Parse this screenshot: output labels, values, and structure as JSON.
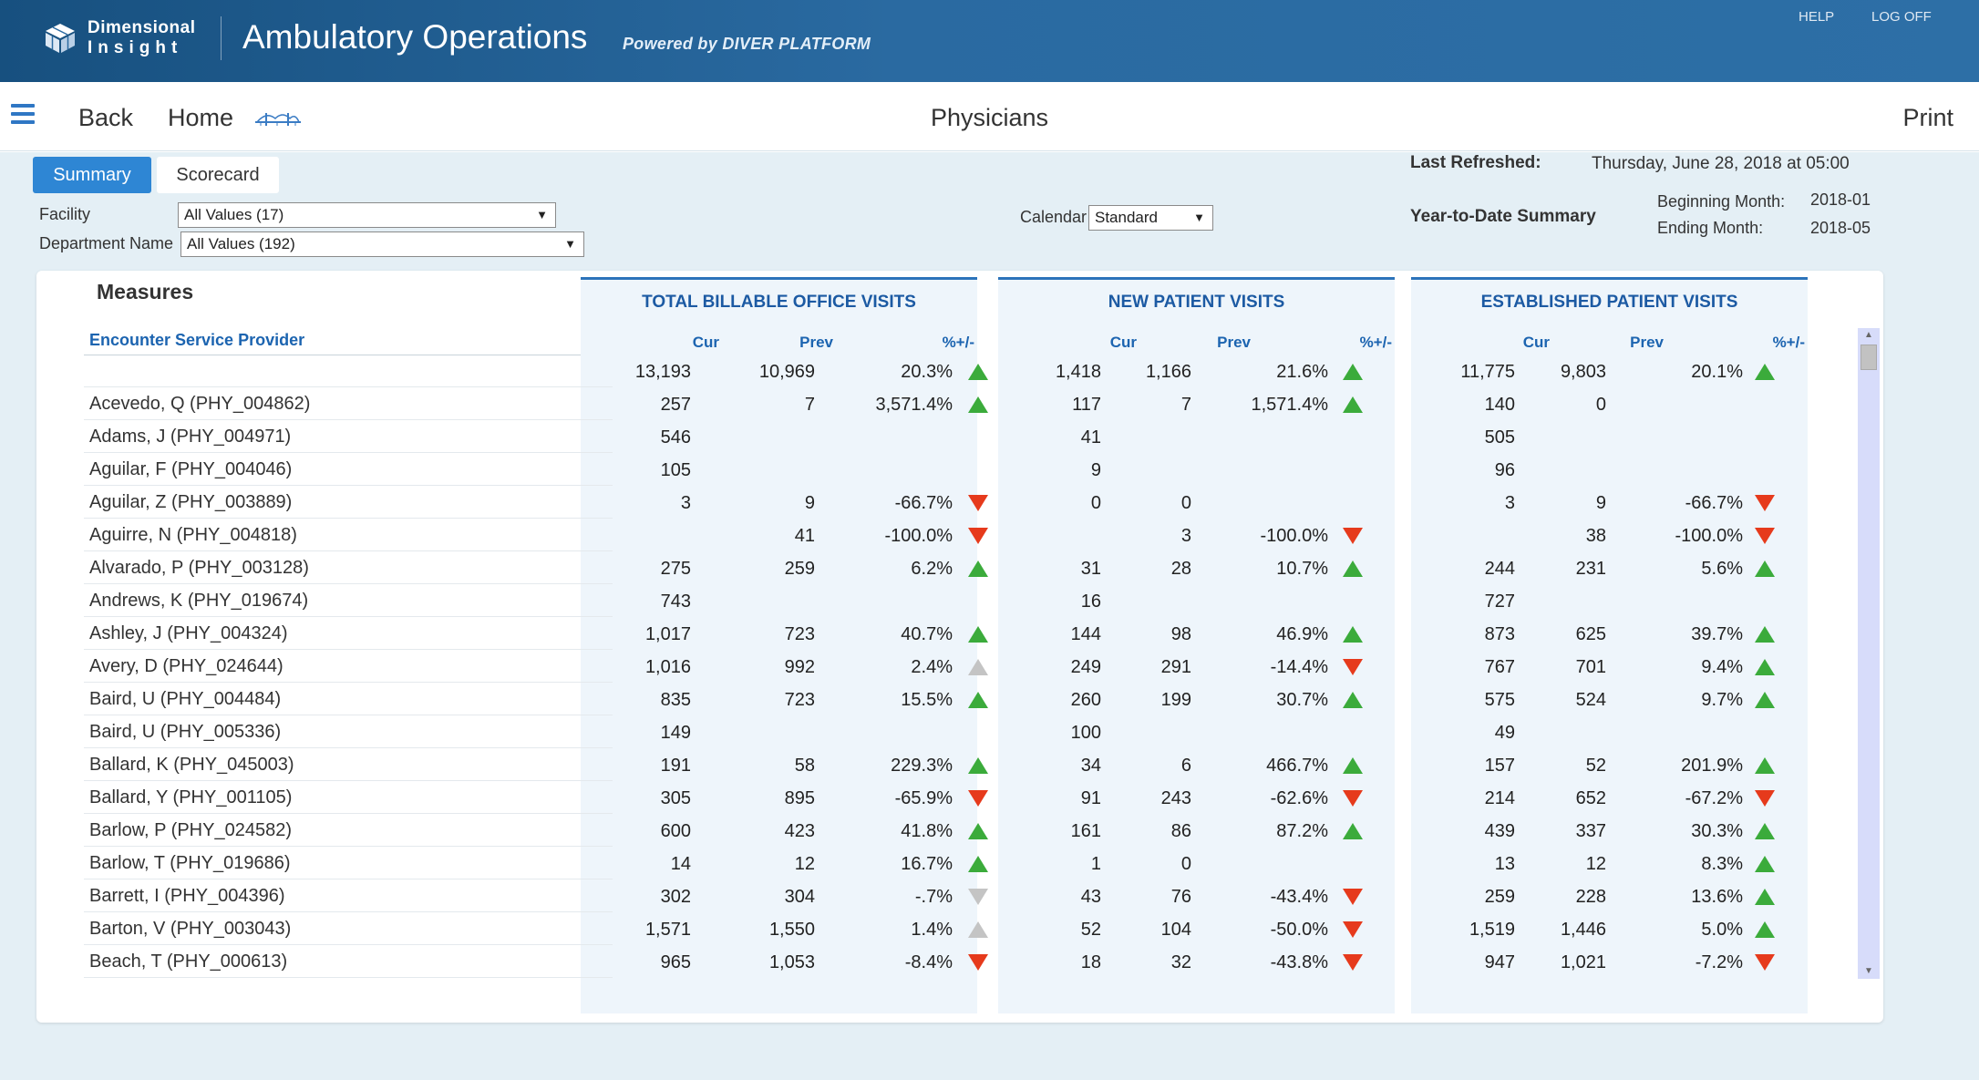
{
  "header": {
    "logo_line1": "Dimensional",
    "logo_line2": "Insight",
    "app_title": "Ambulatory Operations",
    "powered_by": "Powered by DIVER PLATFORM",
    "help": "HELP",
    "logoff": "LOG OFF",
    "colors": {
      "bar_start": "#17507f",
      "bar_end": "#2d6fa6"
    }
  },
  "nav": {
    "back": "Back",
    "home": "Home",
    "page_title": "Physicians",
    "print": "Print",
    "icons": [
      "hamburger-menu-icon",
      "bridge-icon"
    ]
  },
  "tabs": {
    "summary": "Summary",
    "scorecard": "Scorecard",
    "active": "Summary"
  },
  "filters": {
    "facility_label": "Facility",
    "facility_value": "All Values (17)",
    "department_label": "Department Name",
    "department_value": "All Values (192)",
    "calendar_label": "Calendar",
    "calendar_value": "Standard"
  },
  "info": {
    "last_refreshed_label": "Last Refreshed:",
    "last_refreshed_value": "Thursday, June 28, 2018 at 05:00",
    "ytd_label": "Year-to-Date Summary",
    "beginning_label": "Beginning Month:",
    "beginning_value": "2018-01",
    "ending_label": "Ending Month:",
    "ending_value": "2018-05"
  },
  "table": {
    "measures_title": "Measures",
    "provider_header": "Encounter Service Provider",
    "groups": [
      "TOTAL BILLABLE OFFICE VISITS",
      "NEW PATIENT VISITS",
      "ESTABLISHED PATIENT VISITS"
    ],
    "col_headers": [
      "Cur",
      "Prev",
      "%+/-"
    ],
    "trend_colors": {
      "up": "#3bab3b",
      "down": "#e63a1c",
      "flat": "#c4c4c4"
    },
    "rows": [
      {
        "name": "",
        "g": [
          [
            "13,193",
            "10,969",
            "20.3%",
            "up"
          ],
          [
            "1,418",
            "1,166",
            "21.6%",
            "up"
          ],
          [
            "11,775",
            "9,803",
            "20.1%",
            "up"
          ]
        ]
      },
      {
        "name": "Acevedo, Q (PHY_004862)",
        "g": [
          [
            "257",
            "7",
            "3,571.4%",
            "up"
          ],
          [
            "117",
            "7",
            "1,571.4%",
            "up"
          ],
          [
            "140",
            "0",
            "",
            ""
          ]
        ]
      },
      {
        "name": "Adams, J (PHY_004971)",
        "g": [
          [
            "546",
            "",
            "",
            ""
          ],
          [
            "41",
            "",
            "",
            ""
          ],
          [
            "505",
            "",
            "",
            ""
          ]
        ]
      },
      {
        "name": "Aguilar, F (PHY_004046)",
        "g": [
          [
            "105",
            "",
            "",
            ""
          ],
          [
            "9",
            "",
            "",
            ""
          ],
          [
            "96",
            "",
            "",
            ""
          ]
        ]
      },
      {
        "name": "Aguilar, Z (PHY_003889)",
        "g": [
          [
            "3",
            "9",
            "-66.7%",
            "down"
          ],
          [
            "0",
            "0",
            "",
            ""
          ],
          [
            "3",
            "9",
            "-66.7%",
            "down"
          ]
        ]
      },
      {
        "name": "Aguirre, N (PHY_004818)",
        "g": [
          [
            "",
            "41",
            "-100.0%",
            "down"
          ],
          [
            "",
            "3",
            "-100.0%",
            "down"
          ],
          [
            "",
            "38",
            "-100.0%",
            "down"
          ]
        ]
      },
      {
        "name": "Alvarado, P (PHY_003128)",
        "g": [
          [
            "275",
            "259",
            "6.2%",
            "up"
          ],
          [
            "31",
            "28",
            "10.7%",
            "up"
          ],
          [
            "244",
            "231",
            "5.6%",
            "up"
          ]
        ]
      },
      {
        "name": "Andrews, K (PHY_019674)",
        "g": [
          [
            "743",
            "",
            "",
            ""
          ],
          [
            "16",
            "",
            "",
            ""
          ],
          [
            "727",
            "",
            "",
            ""
          ]
        ]
      },
      {
        "name": "Ashley, J (PHY_004324)",
        "g": [
          [
            "1,017",
            "723",
            "40.7%",
            "up"
          ],
          [
            "144",
            "98",
            "46.9%",
            "up"
          ],
          [
            "873",
            "625",
            "39.7%",
            "up"
          ]
        ]
      },
      {
        "name": "Avery, D (PHY_024644)",
        "g": [
          [
            "1,016",
            "992",
            "2.4%",
            "flat-up"
          ],
          [
            "249",
            "291",
            "-14.4%",
            "down"
          ],
          [
            "767",
            "701",
            "9.4%",
            "up"
          ]
        ]
      },
      {
        "name": "Baird, U (PHY_004484)",
        "g": [
          [
            "835",
            "723",
            "15.5%",
            "up"
          ],
          [
            "260",
            "199",
            "30.7%",
            "up"
          ],
          [
            "575",
            "524",
            "9.7%",
            "up"
          ]
        ]
      },
      {
        "name": "Baird, U (PHY_005336)",
        "g": [
          [
            "149",
            "",
            "",
            ""
          ],
          [
            "100",
            "",
            "",
            ""
          ],
          [
            "49",
            "",
            "",
            ""
          ]
        ]
      },
      {
        "name": "Ballard, K (PHY_045003)",
        "g": [
          [
            "191",
            "58",
            "229.3%",
            "up"
          ],
          [
            "34",
            "6",
            "466.7%",
            "up"
          ],
          [
            "157",
            "52",
            "201.9%",
            "up"
          ]
        ]
      },
      {
        "name": "Ballard, Y (PHY_001105)",
        "g": [
          [
            "305",
            "895",
            "-65.9%",
            "down"
          ],
          [
            "91",
            "243",
            "-62.6%",
            "down"
          ],
          [
            "214",
            "652",
            "-67.2%",
            "down"
          ]
        ]
      },
      {
        "name": "Barlow, P (PHY_024582)",
        "g": [
          [
            "600",
            "423",
            "41.8%",
            "up"
          ],
          [
            "161",
            "86",
            "87.2%",
            "up"
          ],
          [
            "439",
            "337",
            "30.3%",
            "up"
          ]
        ]
      },
      {
        "name": "Barlow, T (PHY_019686)",
        "g": [
          [
            "14",
            "12",
            "16.7%",
            "up"
          ],
          [
            "1",
            "0",
            "",
            ""
          ],
          [
            "13",
            "12",
            "8.3%",
            "up"
          ]
        ]
      },
      {
        "name": "Barrett, I (PHY_004396)",
        "g": [
          [
            "302",
            "304",
            "-.7%",
            "flat-down"
          ],
          [
            "43",
            "76",
            "-43.4%",
            "down"
          ],
          [
            "259",
            "228",
            "13.6%",
            "up"
          ]
        ]
      },
      {
        "name": "Barton, V (PHY_003043)",
        "g": [
          [
            "1,571",
            "1,550",
            "1.4%",
            "flat-up"
          ],
          [
            "52",
            "104",
            "-50.0%",
            "down"
          ],
          [
            "1,519",
            "1,446",
            "5.0%",
            "up"
          ]
        ]
      },
      {
        "name": "Beach, T (PHY_000613)",
        "g": [
          [
            "965",
            "1,053",
            "-8.4%",
            "down"
          ],
          [
            "18",
            "32",
            "-43.8%",
            "down"
          ],
          [
            "947",
            "1,021",
            "-7.2%",
            "down"
          ]
        ]
      }
    ]
  }
}
